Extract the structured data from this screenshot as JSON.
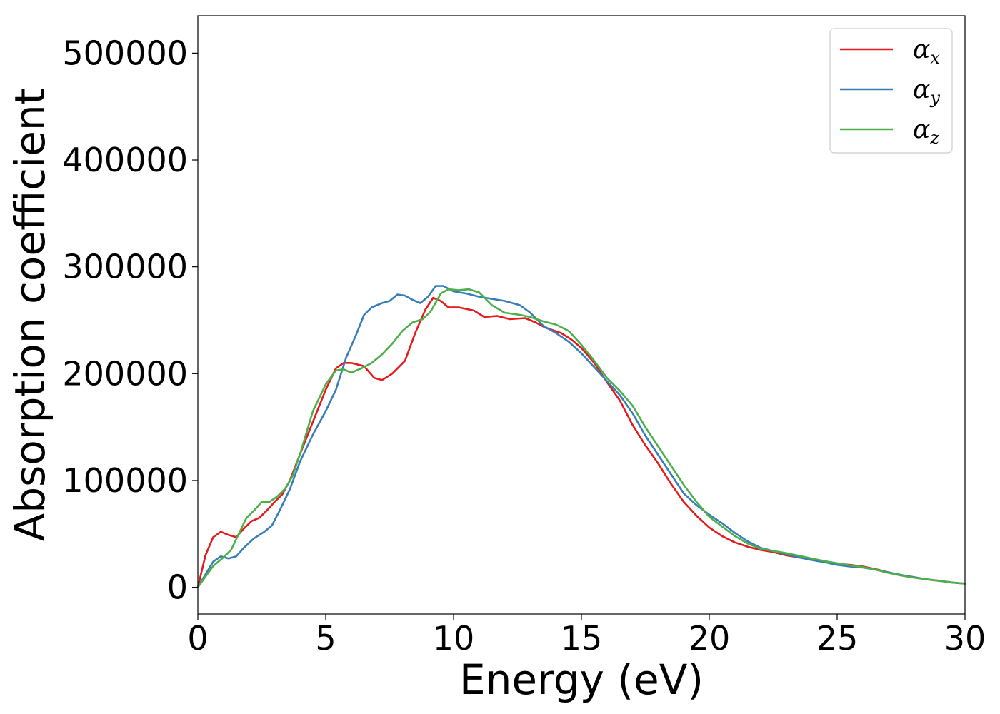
{
  "chart_data": {
    "type": "line",
    "title": "",
    "xlabel": "Energy (eV)",
    "ylabel": "Absorption coefficient",
    "xlim": [
      0,
      30
    ],
    "ylim": [
      -25000,
      535000
    ],
    "xticks": [
      0,
      5,
      10,
      15,
      20,
      25,
      30
    ],
    "xtick_labels": [
      "0",
      "5",
      "10",
      "15",
      "20",
      "25",
      "30"
    ],
    "yticks": [
      0,
      100000,
      200000,
      300000,
      400000,
      500000
    ],
    "ytick_labels": [
      "0",
      "100000",
      "200000",
      "300000",
      "400000",
      "500000"
    ],
    "grid": false,
    "legend_position": "top-right",
    "series": [
      {
        "name": "α_x",
        "label_base": "α",
        "label_sub": "x",
        "color": "#e41a1c",
        "points": [
          [
            0,
            0
          ],
          [
            0.3,
            30000
          ],
          [
            0.6,
            47000
          ],
          [
            0.9,
            52000
          ],
          [
            1.2,
            49000
          ],
          [
            1.5,
            47000
          ],
          [
            1.8,
            55000
          ],
          [
            2.1,
            62000
          ],
          [
            2.4,
            65000
          ],
          [
            2.7,
            72000
          ],
          [
            3.0,
            80000
          ],
          [
            3.3,
            87000
          ],
          [
            3.6,
            100000
          ],
          [
            4.0,
            125000
          ],
          [
            4.5,
            155000
          ],
          [
            5.0,
            185000
          ],
          [
            5.4,
            205000
          ],
          [
            5.7,
            210000
          ],
          [
            6.0,
            210000
          ],
          [
            6.5,
            207000
          ],
          [
            6.9,
            196000
          ],
          [
            7.2,
            194000
          ],
          [
            7.6,
            200000
          ],
          [
            8.1,
            212000
          ],
          [
            8.5,
            238000
          ],
          [
            8.9,
            260000
          ],
          [
            9.2,
            271000
          ],
          [
            9.5,
            268000
          ],
          [
            9.8,
            262000
          ],
          [
            10.2,
            262000
          ],
          [
            10.8,
            259000
          ],
          [
            11.2,
            253000
          ],
          [
            11.7,
            254000
          ],
          [
            12.2,
            251000
          ],
          [
            12.8,
            252000
          ],
          [
            13.2,
            248000
          ],
          [
            13.6,
            243000
          ],
          [
            14.2,
            238000
          ],
          [
            14.6,
            232000
          ],
          [
            15.0,
            224000
          ],
          [
            15.5,
            210000
          ],
          [
            16.0,
            192000
          ],
          [
            16.5,
            175000
          ],
          [
            17.0,
            152000
          ],
          [
            17.5,
            133000
          ],
          [
            18.0,
            116000
          ],
          [
            18.5,
            97000
          ],
          [
            19.0,
            80000
          ],
          [
            19.5,
            67000
          ],
          [
            20.0,
            56000
          ],
          [
            20.5,
            48000
          ],
          [
            21.0,
            42000
          ],
          [
            21.5,
            38000
          ],
          [
            22.0,
            35000
          ],
          [
            22.5,
            33000
          ],
          [
            23.0,
            30000
          ],
          [
            23.5,
            28000
          ],
          [
            24.0,
            26000
          ],
          [
            24.5,
            24500
          ],
          [
            25.0,
            22000
          ],
          [
            25.5,
            21000
          ],
          [
            26.0,
            19500
          ],
          [
            26.5,
            17000
          ],
          [
            27.0,
            14000
          ],
          [
            27.5,
            11500
          ],
          [
            28.0,
            9500
          ],
          [
            28.5,
            7500
          ],
          [
            29.0,
            6000
          ],
          [
            29.5,
            4500
          ],
          [
            30.0,
            3500
          ]
        ]
      },
      {
        "name": "α_y",
        "label_base": "α",
        "label_sub": "y",
        "color": "#377eb8",
        "points": [
          [
            0,
            0
          ],
          [
            0.3,
            12000
          ],
          [
            0.6,
            24000
          ],
          [
            0.9,
            29000
          ],
          [
            1.2,
            27000
          ],
          [
            1.5,
            29000
          ],
          [
            1.8,
            37000
          ],
          [
            2.2,
            46000
          ],
          [
            2.6,
            52000
          ],
          [
            2.9,
            58000
          ],
          [
            3.2,
            72000
          ],
          [
            3.6,
            92000
          ],
          [
            4.0,
            118000
          ],
          [
            4.5,
            143000
          ],
          [
            5.0,
            165000
          ],
          [
            5.4,
            185000
          ],
          [
            5.8,
            215000
          ],
          [
            6.2,
            237000
          ],
          [
            6.5,
            255000
          ],
          [
            6.8,
            262000
          ],
          [
            7.2,
            266000
          ],
          [
            7.5,
            268000
          ],
          [
            7.8,
            274000
          ],
          [
            8.1,
            273000
          ],
          [
            8.4,
            269000
          ],
          [
            8.7,
            266000
          ],
          [
            9.0,
            272000
          ],
          [
            9.3,
            282000
          ],
          [
            9.6,
            282000
          ],
          [
            10.0,
            277000
          ],
          [
            10.5,
            275000
          ],
          [
            11.0,
            272000
          ],
          [
            11.5,
            270000
          ],
          [
            12.0,
            268000
          ],
          [
            12.6,
            264000
          ],
          [
            13.0,
            257000
          ],
          [
            13.5,
            245000
          ],
          [
            14.0,
            238000
          ],
          [
            14.5,
            230000
          ],
          [
            15.0,
            219000
          ],
          [
            15.5,
            206000
          ],
          [
            16.0,
            193000
          ],
          [
            16.5,
            180000
          ],
          [
            17.0,
            163000
          ],
          [
            17.5,
            142000
          ],
          [
            18.0,
            124000
          ],
          [
            18.5,
            106000
          ],
          [
            19.0,
            88000
          ],
          [
            19.5,
            77000
          ],
          [
            20.0,
            68000
          ],
          [
            20.5,
            60000
          ],
          [
            21.0,
            51000
          ],
          [
            21.5,
            43000
          ],
          [
            22.0,
            37000
          ],
          [
            22.5,
            34000
          ],
          [
            23.0,
            31000
          ],
          [
            23.5,
            28000
          ],
          [
            24.0,
            25500
          ],
          [
            24.5,
            23500
          ],
          [
            25.0,
            21000
          ],
          [
            25.5,
            19500
          ],
          [
            26.0,
            18500
          ],
          [
            26.5,
            16500
          ],
          [
            27.0,
            14000
          ],
          [
            27.5,
            11500
          ],
          [
            28.0,
            9500
          ],
          [
            28.5,
            7500
          ],
          [
            29.0,
            6000
          ],
          [
            29.5,
            4500
          ],
          [
            30.0,
            3500
          ]
        ]
      },
      {
        "name": "α_z",
        "label_base": "α",
        "label_sub": "z",
        "color": "#4daf4a",
        "points": [
          [
            0,
            0
          ],
          [
            0.3,
            10000
          ],
          [
            0.6,
            20000
          ],
          [
            1.0,
            28000
          ],
          [
            1.3,
            35000
          ],
          [
            1.6,
            50000
          ],
          [
            1.9,
            65000
          ],
          [
            2.2,
            72000
          ],
          [
            2.5,
            80000
          ],
          [
            2.8,
            80000
          ],
          [
            3.1,
            85000
          ],
          [
            3.4,
            92000
          ],
          [
            3.7,
            104000
          ],
          [
            4.0,
            125000
          ],
          [
            4.5,
            165000
          ],
          [
            5.0,
            190000
          ],
          [
            5.4,
            203000
          ],
          [
            5.7,
            204000
          ],
          [
            6.0,
            201000
          ],
          [
            6.4,
            205000
          ],
          [
            6.8,
            210000
          ],
          [
            7.2,
            218000
          ],
          [
            7.6,
            228000
          ],
          [
            8.0,
            240000
          ],
          [
            8.4,
            248000
          ],
          [
            8.8,
            251000
          ],
          [
            9.1,
            258000
          ],
          [
            9.5,
            275000
          ],
          [
            9.8,
            279000
          ],
          [
            10.2,
            278000
          ],
          [
            10.6,
            279000
          ],
          [
            11.0,
            276000
          ],
          [
            11.5,
            264000
          ],
          [
            12.0,
            257000
          ],
          [
            12.6,
            255000
          ],
          [
            13.0,
            253000
          ],
          [
            13.5,
            249000
          ],
          [
            14.0,
            246000
          ],
          [
            14.5,
            240000
          ],
          [
            15.0,
            227000
          ],
          [
            15.5,
            212000
          ],
          [
            16.0,
            196000
          ],
          [
            16.5,
            184000
          ],
          [
            17.0,
            170000
          ],
          [
            17.5,
            150000
          ],
          [
            18.0,
            132000
          ],
          [
            18.5,
            114000
          ],
          [
            19.0,
            96000
          ],
          [
            19.5,
            80000
          ],
          [
            20.0,
            66000
          ],
          [
            20.5,
            57000
          ],
          [
            21.0,
            48000
          ],
          [
            21.5,
            41000
          ],
          [
            22.0,
            36000
          ],
          [
            22.5,
            34000
          ],
          [
            23.0,
            32000
          ],
          [
            23.5,
            29500
          ],
          [
            24.0,
            27000
          ],
          [
            24.5,
            24500
          ],
          [
            25.0,
            22500
          ],
          [
            25.5,
            20500
          ],
          [
            26.0,
            19000
          ],
          [
            26.5,
            16500
          ],
          [
            27.0,
            13500
          ],
          [
            27.5,
            11000
          ],
          [
            28.0,
            9000
          ],
          [
            28.5,
            7500
          ],
          [
            29.0,
            6000
          ],
          [
            29.5,
            4500
          ],
          [
            30.0,
            3500
          ]
        ]
      }
    ]
  }
}
